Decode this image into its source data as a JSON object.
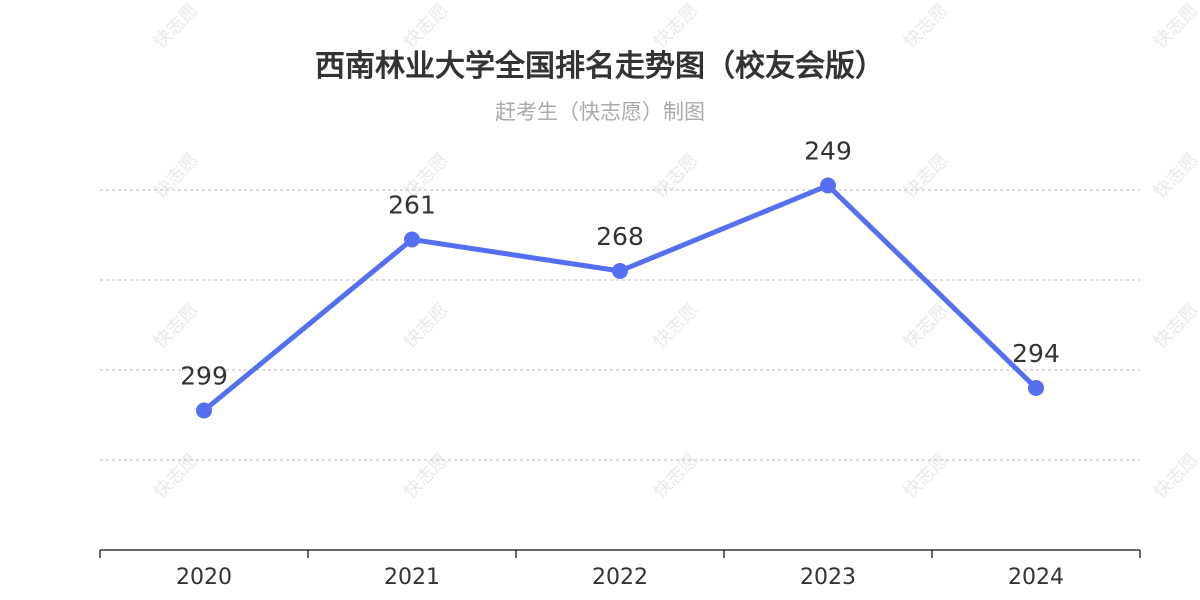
{
  "chart_data": {
    "type": "line",
    "title": "西南林业大学全国排名走势图（校友会版）",
    "subtitle": "赶考生（快志愿）制图",
    "categories": [
      "2020",
      "2021",
      "2022",
      "2023",
      "2024"
    ],
    "series": [
      {
        "values": [
          299,
          261,
          268,
          249,
          294
        ]
      }
    ],
    "y_inverted": true,
    "y_gridlines": [
      250,
      270,
      290,
      310
    ],
    "ylim": [
      250,
      330
    ],
    "grid": true,
    "line_color": "#5470f0",
    "grid_color": "#bbbbbb",
    "axis_color": "#333333"
  },
  "watermark": {
    "text": "快志愿"
  }
}
